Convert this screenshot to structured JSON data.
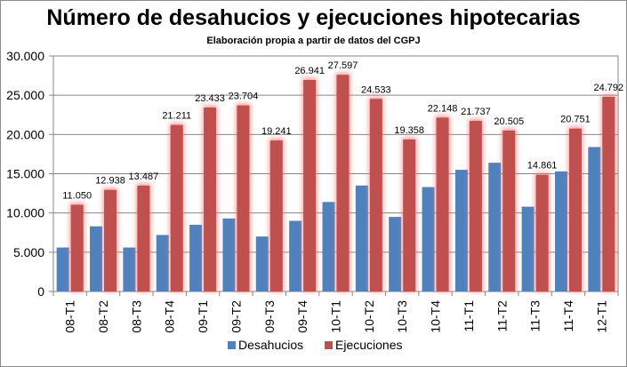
{
  "chart_data": {
    "type": "bar",
    "title": "Número de desahucios y ejecuciones hipotecarias",
    "subtitle": "Elaboración propia a partir de datos del CGPJ",
    "xlabel": "",
    "ylabel": "",
    "ylim": [
      0,
      30000
    ],
    "yticks": [
      0,
      5000,
      10000,
      15000,
      20000,
      25000,
      30000
    ],
    "ytick_labels": [
      "0",
      "5.000",
      "10.000",
      "15.000",
      "20.000",
      "25.000",
      "30.000"
    ],
    "grid": true,
    "legend_position": "bottom",
    "categories": [
      "08-T1",
      "08-T2",
      "08-T3",
      "08-T4",
      "09-T1",
      "09-T2",
      "09-T3",
      "09-T4",
      "10-T1",
      "10-T2",
      "10-T3",
      "10-T4",
      "11-T1",
      "11-T2",
      "11-T3",
      "11-T4",
      "12-T1"
    ],
    "series": [
      {
        "name": "Desahucios",
        "color": "#4f81bd",
        "values": [
          5600,
          8300,
          5600,
          7200,
          8500,
          9300,
          7000,
          9000,
          11400,
          13500,
          9500,
          13300,
          15500,
          16400,
          10800,
          15300,
          18400
        ]
      },
      {
        "name": "Ejecuciones",
        "color": "#c0504d",
        "values": [
          11050,
          12938,
          13487,
          21211,
          23433,
          23704,
          19241,
          26941,
          27597,
          24533,
          19358,
          22148,
          21737,
          20505,
          14861,
          20751,
          24792
        ],
        "data_labels": [
          "11.050",
          "12.938",
          "13.487",
          "21.211",
          "23.433",
          "23.704",
          "19.241",
          "26.941",
          "27.597",
          "24.533",
          "19.358",
          "22.148",
          "21.737",
          "20.505",
          "14.861",
          "20.751",
          "24.792"
        ]
      }
    ]
  }
}
